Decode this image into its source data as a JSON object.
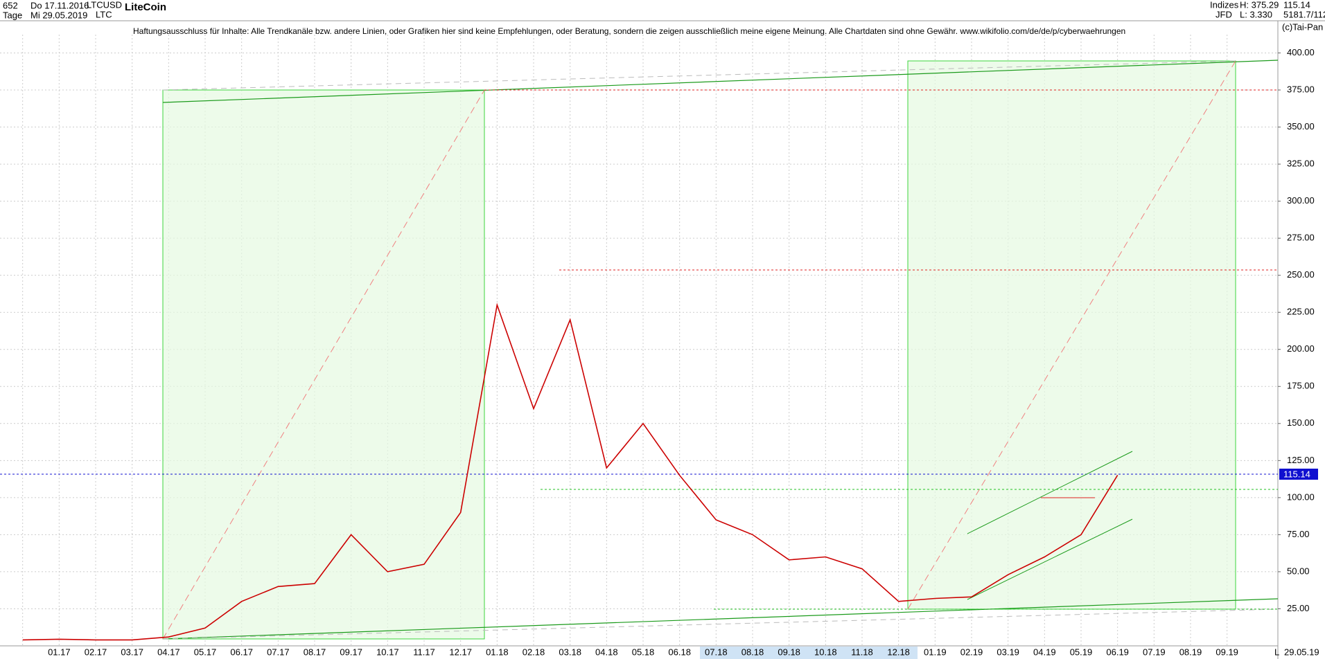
{
  "header": {
    "bars": "652",
    "start": "Do 17.11.2016",
    "symbol": "LTCUSD",
    "name": "LiteCoin",
    "period": "Tage",
    "end": "Mi 29.05.2019",
    "short": "LTC",
    "group": "Indizes",
    "high": "H: 375.29",
    "last": "115.14",
    "broker": "JFD",
    "low": "L: 3.330",
    "extra": "5181.7/112",
    "copyright": "(c)Tai-Pan",
    "disclaimer": "Haftungsausschluss für Inhalte: Alle Trendkanäle bzw. andere Linien, oder Grafiken hier sind keine Empfehlungen, oder Beratung, sondern die zeigen ausschließlich meine eigene Meinung. Alle Chartdaten sind ohne Gewähr.  www.wikifolio.com/de/de/p/cyberwaehrungen",
    "date_label": "29.05.19",
    "scale_label": "L"
  },
  "chart_data": {
    "type": "line",
    "title": "LiteCoin",
    "categories": [
      null,
      "01.17",
      "02.17",
      "03.17",
      "04.17",
      "05.17",
      "06.17",
      "07.17",
      "08.17",
      "09.17",
      "10.17",
      "11.17",
      "12.17",
      "01.18",
      "02.18",
      "03.18",
      "04.18",
      "05.18",
      "06.18",
      "07.18",
      "08.18",
      "09.18",
      "10.18",
      "11.18",
      "12.18",
      "01.19",
      "02.19",
      "03.19",
      "04.19",
      "05.19",
      "06.19",
      "07.19",
      "08.19",
      "09.19"
    ],
    "series": [
      {
        "name": "LTCUSD",
        "color": "#cc0000",
        "values": [
          4,
          4.5,
          4,
          4,
          6,
          12,
          30,
          40,
          42,
          75,
          50,
          55,
          90,
          230,
          160,
          220,
          120,
          150,
          115,
          85,
          75,
          58,
          60,
          52,
          30,
          32,
          33,
          48,
          60,
          75,
          115.14,
          null,
          null,
          null
        ]
      }
    ],
    "ylim": [
      0,
      421.7
    ],
    "yticks": [
      {
        "value": 25,
        "label": "25.00"
      },
      {
        "value": 50,
        "label": "50.00"
      },
      {
        "value": 75,
        "label": "75.00"
      },
      {
        "value": 100,
        "label": "100.00"
      },
      {
        "value": 125,
        "label": "125.00"
      },
      {
        "value": 150,
        "label": "150.00"
      },
      {
        "value": 175,
        "label": "175.00"
      },
      {
        "value": 200,
        "label": "200.00"
      },
      {
        "value": 225,
        "label": "225.00"
      },
      {
        "value": 250,
        "label": "250.00"
      },
      {
        "value": 275,
        "label": "275.00"
      },
      {
        "value": 300,
        "label": "300.00"
      },
      {
        "value": 325,
        "label": "325.00"
      },
      {
        "value": 350,
        "label": "350.00"
      },
      {
        "value": 375,
        "label": "375.00"
      },
      {
        "value": 400,
        "label": "400.00"
      }
    ],
    "grid": true
  }
}
